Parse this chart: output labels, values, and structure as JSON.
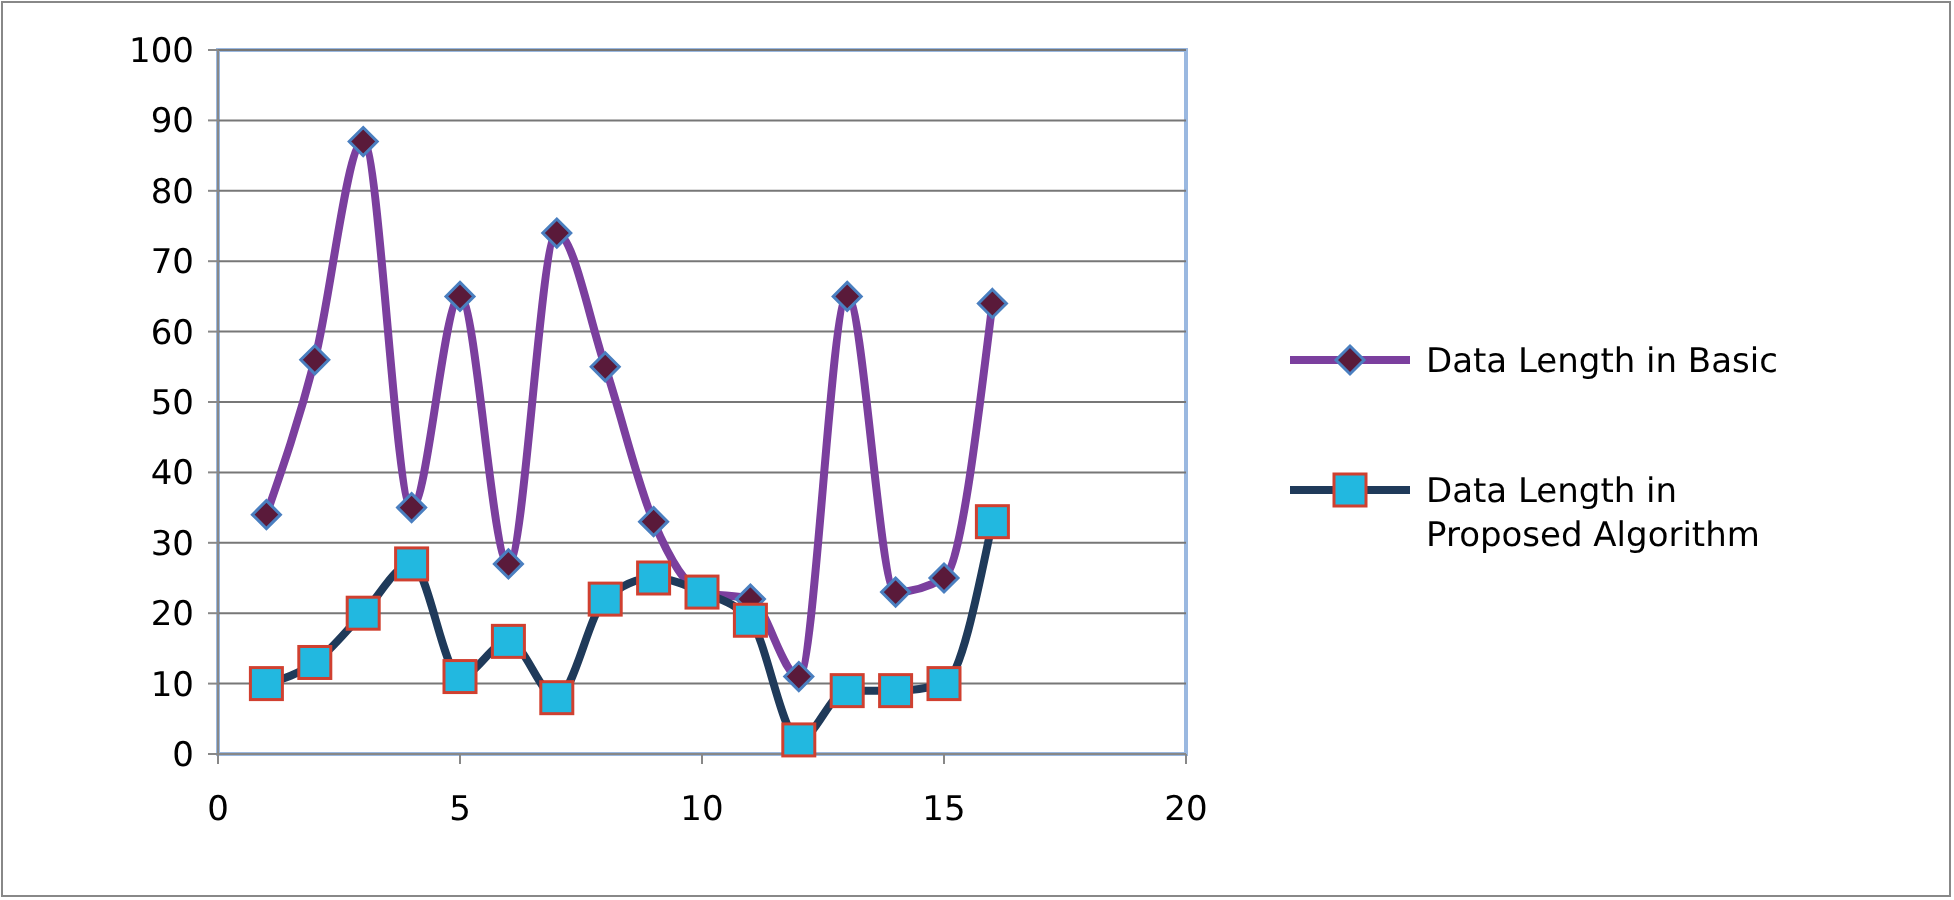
{
  "chart_data": {
    "type": "line",
    "x": [
      1,
      2,
      3,
      4,
      5,
      6,
      7,
      8,
      9,
      10,
      11,
      12,
      13,
      14,
      15,
      16
    ],
    "series": [
      {
        "name": "Data Length in Basic",
        "color": "#7b3f9e",
        "marker": "diamond",
        "values": [
          34,
          56,
          87,
          35,
          65,
          27,
          74,
          55,
          33,
          23,
          22,
          11,
          65,
          23,
          25,
          64
        ]
      },
      {
        "name": "Data Length in Proposed Algorithm",
        "color": "#1f3a5a",
        "marker": "square",
        "values": [
          10,
          13,
          20,
          27,
          11,
          16,
          8,
          22,
          25,
          23,
          19,
          2,
          9,
          9,
          10,
          33
        ]
      }
    ],
    "xlim": [
      0,
      20
    ],
    "xticks": [
      0,
      5,
      10,
      15,
      20
    ],
    "ylim": [
      0,
      100
    ],
    "yticks": [
      0,
      10,
      20,
      30,
      40,
      50,
      60,
      70,
      80,
      90,
      100
    ],
    "grid": "y",
    "legend": "right"
  }
}
